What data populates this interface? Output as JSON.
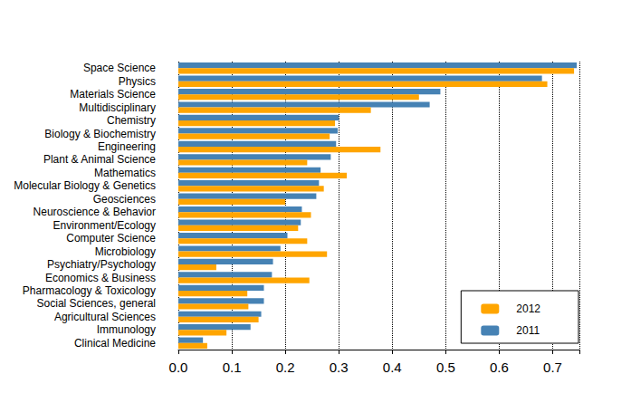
{
  "chart_data": {
    "type": "bar",
    "orientation": "horizontal",
    "categories": [
      "Space Science",
      "Physics",
      "Materials Science",
      "Multidisciplinary",
      "Chemistry",
      "Biology & Biochemistry",
      "Engineering",
      "Plant & Animal Science",
      "Mathematics",
      "Molecular Biology & Genetics",
      "Geosciences",
      "Neuroscience & Behavior",
      "Environment/Ecology",
      "Computer Science",
      "Microbiology",
      "Psychiatry/Psychology",
      "Economics & Business",
      "Pharmacology & Toxicology",
      "Social Sciences, general",
      "Agricultural Sciences",
      "Immunology",
      "Clinical Medicine"
    ],
    "series": [
      {
        "name": "2011",
        "color": "#4682b4",
        "values": [
          0.745,
          0.68,
          0.49,
          0.47,
          0.3,
          0.298,
          0.295,
          0.285,
          0.266,
          0.263,
          0.258,
          0.231,
          0.229,
          0.204,
          0.191,
          0.177,
          0.175,
          0.16,
          0.16,
          0.155,
          0.135,
          0.046
        ]
      },
      {
        "name": "2012",
        "color": "#ffa500",
        "values": [
          0.74,
          0.69,
          0.45,
          0.36,
          0.293,
          0.283,
          0.378,
          0.241,
          0.315,
          0.272,
          0.2,
          0.248,
          0.224,
          0.241,
          0.278,
          0.071,
          0.245,
          0.129,
          0.131,
          0.15,
          0.09,
          0.054
        ]
      }
    ],
    "xlim": [
      0,
      0.75
    ],
    "xticks": [
      {
        "value": 0,
        "label": "0.0"
      },
      0.1,
      0.2,
      0.3,
      0.4,
      0.5,
      0.6,
      0.7
    ],
    "grid": true,
    "legend": "bottom-right"
  }
}
